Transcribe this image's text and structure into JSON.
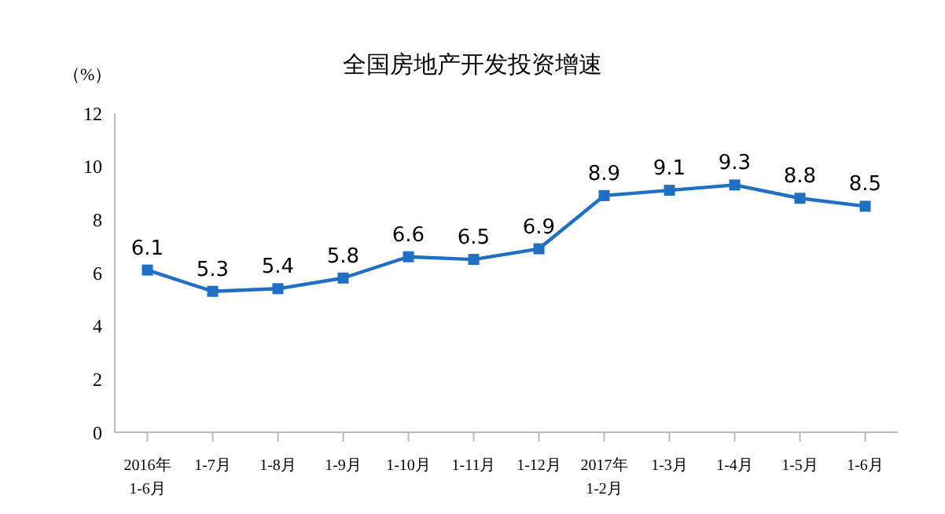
{
  "chart_data": {
    "type": "line",
    "title": "全国房地产开发投资增速",
    "ylabel": "（%）",
    "categories": [
      "2016年\n1-6月",
      "1-7月",
      "1-8月",
      "1-9月",
      "1-10月",
      "1-11月",
      "1-12月",
      "2017年\n1-2月",
      "1-3月",
      "1-4月",
      "1-5月",
      "1-6月"
    ],
    "series": [
      {
        "color": "#1f6fc5",
        "values": [
          6.1,
          5.3,
          5.4,
          5.8,
          6.6,
          6.5,
          6.9,
          8.9,
          9.1,
          9.3,
          8.8,
          8.5
        ]
      }
    ],
    "ylim": [
      0,
      12
    ],
    "yticks": [
      0,
      2,
      4,
      6,
      8,
      10,
      12
    ],
    "marker": "square",
    "data_labels": true,
    "grid": false
  }
}
